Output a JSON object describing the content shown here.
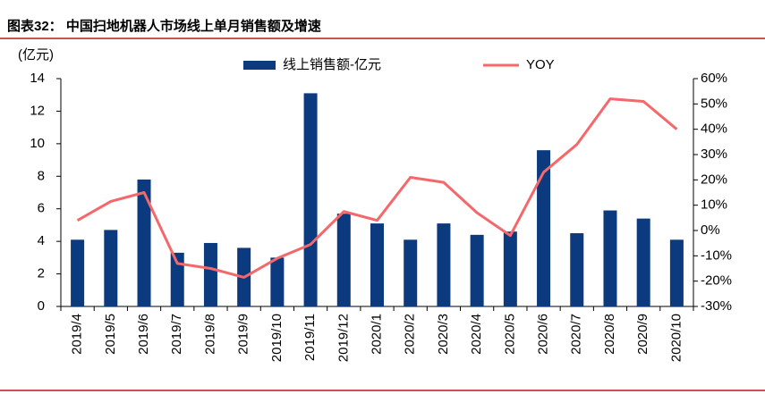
{
  "chart_data": {
    "type": "combo",
    "title": "图表32：  中国扫地机器人市场线上单月销售额及增速",
    "y_label": "(亿元)",
    "categories": [
      "2019/4",
      "2019/5",
      "2019/6",
      "2019/7",
      "2019/8",
      "2019/9",
      "2019/10",
      "2019/11",
      "2019/12",
      "2020/1",
      "2020/2",
      "2020/3",
      "2020/4",
      "2020/5",
      "2020/6",
      "2020/7",
      "2020/8",
      "2020/9",
      "2020/10"
    ],
    "series": [
      {
        "name": "线上销售额-亿元",
        "type": "bar",
        "color": "#0b3a7e",
        "values": [
          4.1,
          4.7,
          7.8,
          3.3,
          3.9,
          3.6,
          3.0,
          13.1,
          5.7,
          5.1,
          4.1,
          5.1,
          4.4,
          4.6,
          9.6,
          4.5,
          5.9,
          5.4,
          4.1
        ]
      },
      {
        "name": "YOY",
        "type": "line",
        "color": "#f4686b",
        "axis": "y2",
        "values": [
          4,
          11.5,
          15,
          -13,
          -15,
          -18.5,
          -11,
          -5.5,
          7.5,
          4,
          21,
          19,
          7,
          -2,
          23,
          34,
          52,
          51,
          40
        ]
      }
    ],
    "ylim": [
      0,
      14
    ],
    "yticks": [
      0,
      2,
      4,
      6,
      8,
      10,
      12,
      14
    ],
    "y2lim": [
      -30,
      60
    ],
    "y2ticks": [
      {
        "value": -30,
        "label": "-30%"
      },
      {
        "value": -20,
        "label": "-20%"
      },
      {
        "value": -10,
        "label": "-10%"
      },
      {
        "value": 0,
        "label": "0%"
      },
      {
        "value": 10,
        "label": "10%"
      },
      {
        "value": 20,
        "label": "20%"
      },
      {
        "value": 30,
        "label": "30%"
      },
      {
        "value": 40,
        "label": "40%"
      },
      {
        "value": 50,
        "label": "50%"
      },
      {
        "value": 60,
        "label": "60%"
      }
    ]
  }
}
